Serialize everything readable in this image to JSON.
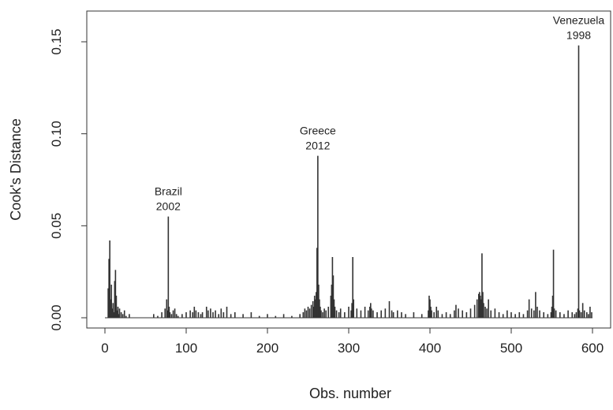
{
  "chart_data": {
    "type": "bar",
    "xlabel": "Obs. number",
    "ylabel": "Cook's Distance",
    "xlim": [
      0,
      600
    ],
    "ylim": [
      0,
      0.16
    ],
    "x_ticks": [
      0,
      100,
      200,
      300,
      400,
      500,
      600
    ],
    "x_tick_labels": [
      "0",
      "100",
      "200",
      "300",
      "400",
      "500",
      "600"
    ],
    "y_ticks": [
      0,
      0.05,
      0.1,
      0.15
    ],
    "y_tick_labels": [
      "0.00",
      "0.05",
      "0.10",
      "0.15"
    ],
    "grid": false,
    "colors": {
      "bars": "#333333",
      "axes": "#333333"
    },
    "series": [
      {
        "x": [
          4,
          5,
          6,
          7,
          8,
          9,
          10,
          11,
          12,
          13,
          14,
          15,
          16,
          17,
          18,
          20,
          22,
          24,
          26,
          30,
          60,
          65,
          70,
          74,
          76,
          77,
          78,
          79,
          80,
          82,
          84,
          86,
          88,
          90,
          95,
          100,
          105,
          108,
          110,
          112,
          115,
          118,
          120,
          125,
          127,
          130,
          133,
          136,
          140,
          143,
          146,
          150,
          155,
          160,
          170,
          180,
          190,
          200,
          210,
          220,
          230,
          240,
          244,
          246,
          248,
          250,
          252,
          254,
          256,
          257,
          258,
          259,
          260,
          261,
          262,
          263,
          264,
          265,
          266,
          268,
          270,
          272,
          275,
          278,
          279,
          280,
          281,
          282,
          283,
          285,
          288,
          290,
          295,
          300,
          303,
          304,
          305,
          306,
          310,
          315,
          320,
          324,
          326,
          327,
          328,
          330,
          335,
          340,
          345,
          350,
          353,
          355,
          360,
          365,
          370,
          380,
          390,
          398,
          399,
          400,
          401,
          402,
          405,
          408,
          410,
          415,
          420,
          425,
          430,
          432,
          435,
          440,
          445,
          450,
          455,
          458,
          460,
          461,
          462,
          463,
          464,
          465,
          466,
          468,
          470,
          472,
          475,
          480,
          485,
          490,
          495,
          500,
          505,
          510,
          515,
          520,
          522,
          525,
          528,
          530,
          532,
          535,
          540,
          545,
          549,
          550,
          551,
          552,
          553,
          555,
          560,
          565,
          570,
          575,
          578,
          580,
          582,
          583,
          584,
          586,
          588,
          590,
          593,
          595,
          597,
          599
        ],
        "values": [
          0.016,
          0.032,
          0.042,
          0.01,
          0.018,
          0.005,
          0.008,
          0.003,
          0.02,
          0.026,
          0.012,
          0.004,
          0.006,
          0.002,
          0.005,
          0.003,
          0.002,
          0.004,
          0.001,
          0.002,
          0.002,
          0.001,
          0.003,
          0.005,
          0.01,
          0.004,
          0.055,
          0.006,
          0.003,
          0.002,
          0.004,
          0.005,
          0.002,
          0.001,
          0.002,
          0.003,
          0.004,
          0.003,
          0.006,
          0.004,
          0.003,
          0.002,
          0.003,
          0.006,
          0.004,
          0.005,
          0.003,
          0.004,
          0.002,
          0.005,
          0.003,
          0.006,
          0.002,
          0.003,
          0.002,
          0.003,
          0.001,
          0.002,
          0.001,
          0.002,
          0.001,
          0.002,
          0.003,
          0.005,
          0.004,
          0.006,
          0.005,
          0.007,
          0.009,
          0.006,
          0.012,
          0.01,
          0.014,
          0.038,
          0.088,
          0.018,
          0.01,
          0.006,
          0.004,
          0.003,
          0.005,
          0.004,
          0.006,
          0.012,
          0.018,
          0.033,
          0.023,
          0.01,
          0.006,
          0.004,
          0.003,
          0.005,
          0.003,
          0.006,
          0.004,
          0.008,
          0.033,
          0.01,
          0.005,
          0.004,
          0.006,
          0.004,
          0.006,
          0.008,
          0.005,
          0.004,
          0.003,
          0.004,
          0.005,
          0.009,
          0.004,
          0.003,
          0.004,
          0.003,
          0.002,
          0.003,
          0.002,
          0.004,
          0.012,
          0.01,
          0.006,
          0.004,
          0.003,
          0.006,
          0.004,
          0.002,
          0.003,
          0.002,
          0.004,
          0.007,
          0.005,
          0.004,
          0.003,
          0.005,
          0.007,
          0.01,
          0.013,
          0.014,
          0.012,
          0.01,
          0.035,
          0.014,
          0.008,
          0.006,
          0.005,
          0.01,
          0.004,
          0.005,
          0.003,
          0.002,
          0.004,
          0.003,
          0.002,
          0.003,
          0.002,
          0.004,
          0.01,
          0.005,
          0.004,
          0.014,
          0.006,
          0.004,
          0.003,
          0.002,
          0.003,
          0.006,
          0.012,
          0.037,
          0.005,
          0.004,
          0.003,
          0.002,
          0.004,
          0.003,
          0.002,
          0.003,
          0.005,
          0.148,
          0.004,
          0.003,
          0.008,
          0.004,
          0.003,
          0.002,
          0.006,
          0.003
        ]
      }
    ],
    "annotations": [
      {
        "lines": [
          "Brazil",
          "2002"
        ],
        "x": 78,
        "y": 0.055
      },
      {
        "lines": [
          "Greece",
          "2012"
        ],
        "x": 262,
        "y": 0.088
      },
      {
        "lines": [
          "Venezuela",
          "1998"
        ],
        "x": 583,
        "y": 0.148
      }
    ]
  }
}
